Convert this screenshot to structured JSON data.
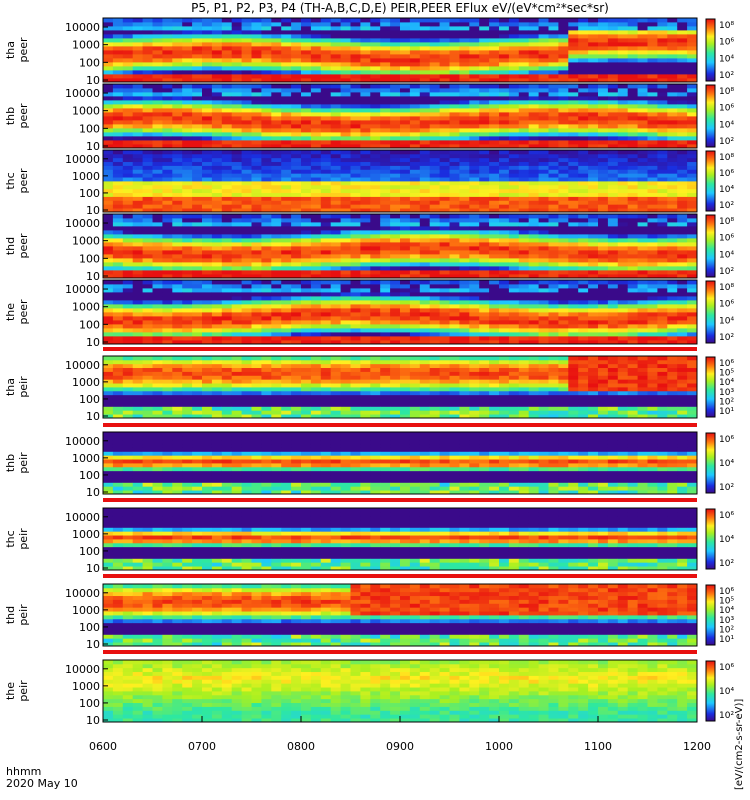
{
  "title": "P5, P1, P2, P3, P4 (TH-A,B,C,D,E) PEIR,PEER EFlux eV/(eV*cm²*sec*sr)",
  "footer": {
    "time_label": "hhmm",
    "date_label": "2020 May 10"
  },
  "chart_data": {
    "type": "heatmap",
    "x_ticks": [
      "0600",
      "0700",
      "0800",
      "0900",
      "1000",
      "1100",
      "1200"
    ],
    "y_ticks": [
      "10",
      "100",
      "1000",
      "10000"
    ],
    "y_scale": "log",
    "colorbar_label": "[eV/(cm2-s-sr-eV)]",
    "panels": [
      {
        "probe": "tha",
        "species": "peer",
        "cbar": [
          "10⁸",
          "10⁶",
          "10⁴",
          "10²"
        ]
      },
      {
        "probe": "thb",
        "species": "peer",
        "cbar": [
          "10⁸",
          "10⁶",
          "10⁴",
          "10²"
        ]
      },
      {
        "probe": "thc",
        "species": "peer",
        "cbar": [
          "10⁸",
          "10⁶",
          "10⁴",
          "10²"
        ]
      },
      {
        "probe": "thd",
        "species": "peer",
        "cbar": [
          "10⁸",
          "10⁶",
          "10⁴",
          "10²"
        ]
      },
      {
        "probe": "the",
        "species": "peer",
        "cbar": [
          "10⁸",
          "10⁶",
          "10⁴",
          "10²"
        ]
      },
      {
        "probe": "tha",
        "species": "peir",
        "cbar": [
          "10⁶",
          "10⁵",
          "10⁴",
          "10³",
          "10²",
          "10¹"
        ]
      },
      {
        "probe": "thb",
        "species": "peir",
        "cbar": [
          "10⁶",
          "10⁴",
          "10²"
        ]
      },
      {
        "probe": "thc",
        "species": "peir",
        "cbar": [
          "10⁶",
          "10⁴",
          "10²"
        ]
      },
      {
        "probe": "thd",
        "species": "peir",
        "cbar": [
          "10⁶",
          "10⁵",
          "10⁴",
          "10³",
          "10²",
          "10¹"
        ]
      },
      {
        "probe": "the",
        "species": "peir",
        "cbar": [
          "10⁶",
          "10⁴",
          "10²"
        ]
      }
    ]
  }
}
